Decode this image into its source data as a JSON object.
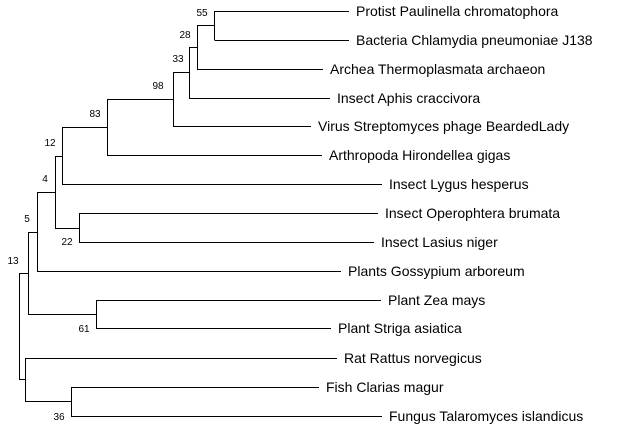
{
  "tree": {
    "leaves": [
      "Protist Paulinella chromatophora",
      "Bacteria Chlamydia pneumoniae J138",
      "Archea Thermoplasmata archaeon",
      "Insect Aphis craccivora",
      "Virus Streptomyces phage BeardedLady",
      "Arthropoda Hirondellea gigas",
      "Insect Lygus hesperus",
      "Insect Operophtera brumata",
      "Insect Lasius niger",
      "Plants Gossypium arboreum",
      "Plant Zea mays",
      "Plant Striga asiatica",
      "Rat Rattus norvegicus",
      "Fish Clarias magur",
      "Fungus Talaromyces islandicus"
    ],
    "support_values": [
      "55",
      "28",
      "33",
      "98",
      "83",
      "12",
      "4",
      "22",
      "5",
      "61",
      "13",
      "36"
    ]
  }
}
